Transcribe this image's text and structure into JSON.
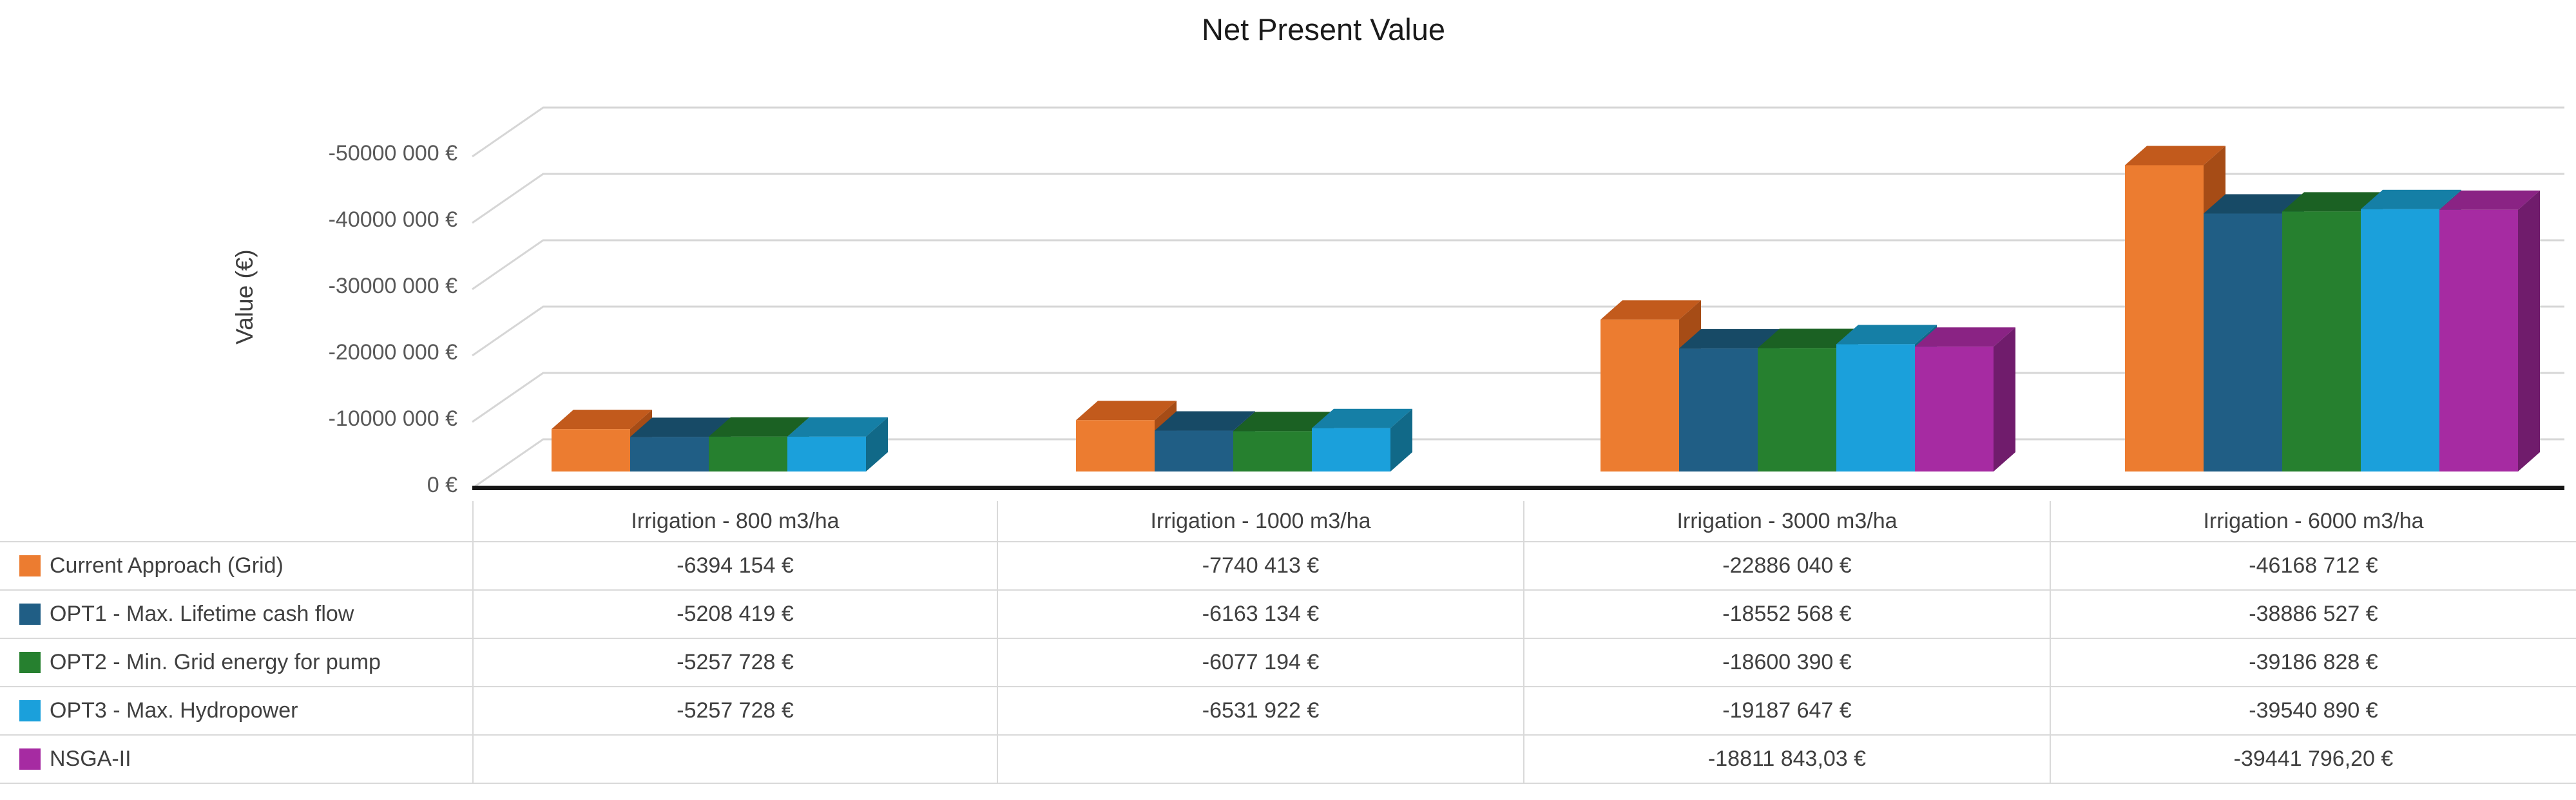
{
  "chart_data": {
    "type": "bar",
    "style": "3d-clustered-column",
    "title": "Net Present Value",
    "xlabel": "",
    "ylabel": "Value (€)",
    "ylim": [
      0,
      -55000000
    ],
    "axis_inverted": true,
    "grid": true,
    "legend_position": "table-left",
    "y_ticks": [
      "0 €",
      "-10000 000 €",
      "-20000 000 €",
      "-30000 000 €",
      "-40000 000 €",
      "-50000 000 €"
    ],
    "categories": [
      "Irrigation - 800 m3/ha",
      "Irrigation - 1000 m3/ha",
      "Irrigation - 3000 m3/ha",
      "Irrigation - 6000 m3/ha"
    ],
    "series": [
      {
        "name": "Current Approach (Grid)",
        "color": "#EC7C30",
        "top_color": "#C25A1C",
        "side_color": "#A64C16",
        "values": [
          -6394154,
          -7740413,
          -22886040,
          -46168712
        ],
        "display": [
          "-6394 154 €",
          "-7740 413 €",
          "-22886 040 €",
          "-46168 712 €"
        ]
      },
      {
        "name": "OPT1 - Max. Lifetime cash flow",
        "color": "#205E85",
        "top_color": "#174A66",
        "side_color": "#123C55",
        "values": [
          -5208419,
          -6163134,
          -18552568,
          -38886527
        ],
        "display": [
          "-5208 419 €",
          "-6163 134 €",
          "-18552 568 €",
          "-38886 527 €"
        ]
      },
      {
        "name": "OPT2 - Min. Grid energy for pump",
        "color": "#26802F",
        "top_color": "#1B6123",
        "side_color": "#154E1C",
        "values": [
          -5257728,
          -6077194,
          -18600390,
          -39186828
        ],
        "display": [
          "-5257 728 €",
          "-6077 194 €",
          "-18600 390 €",
          "-39186 828 €"
        ]
      },
      {
        "name": "OPT3 - Max. Hydropower",
        "color": "#1BA0DB",
        "top_color": "#157FA6",
        "side_color": "#116988",
        "values": [
          -5257728,
          -6531922,
          -19187647,
          -39540890
        ],
        "display": [
          "-5257 728 €",
          "-6531 922 €",
          "-19187 647 €",
          "-39540 890 €"
        ]
      },
      {
        "name": "NSGA-II",
        "color": "#A62BA2",
        "top_color": "#8A2384",
        "side_color": "#701C6C",
        "values": [
          null,
          null,
          -18811843.03,
          -39441796.2
        ],
        "display": [
          "",
          "",
          "-18811 843,03 €",
          "-39441 796,20 €"
        ]
      }
    ]
  }
}
